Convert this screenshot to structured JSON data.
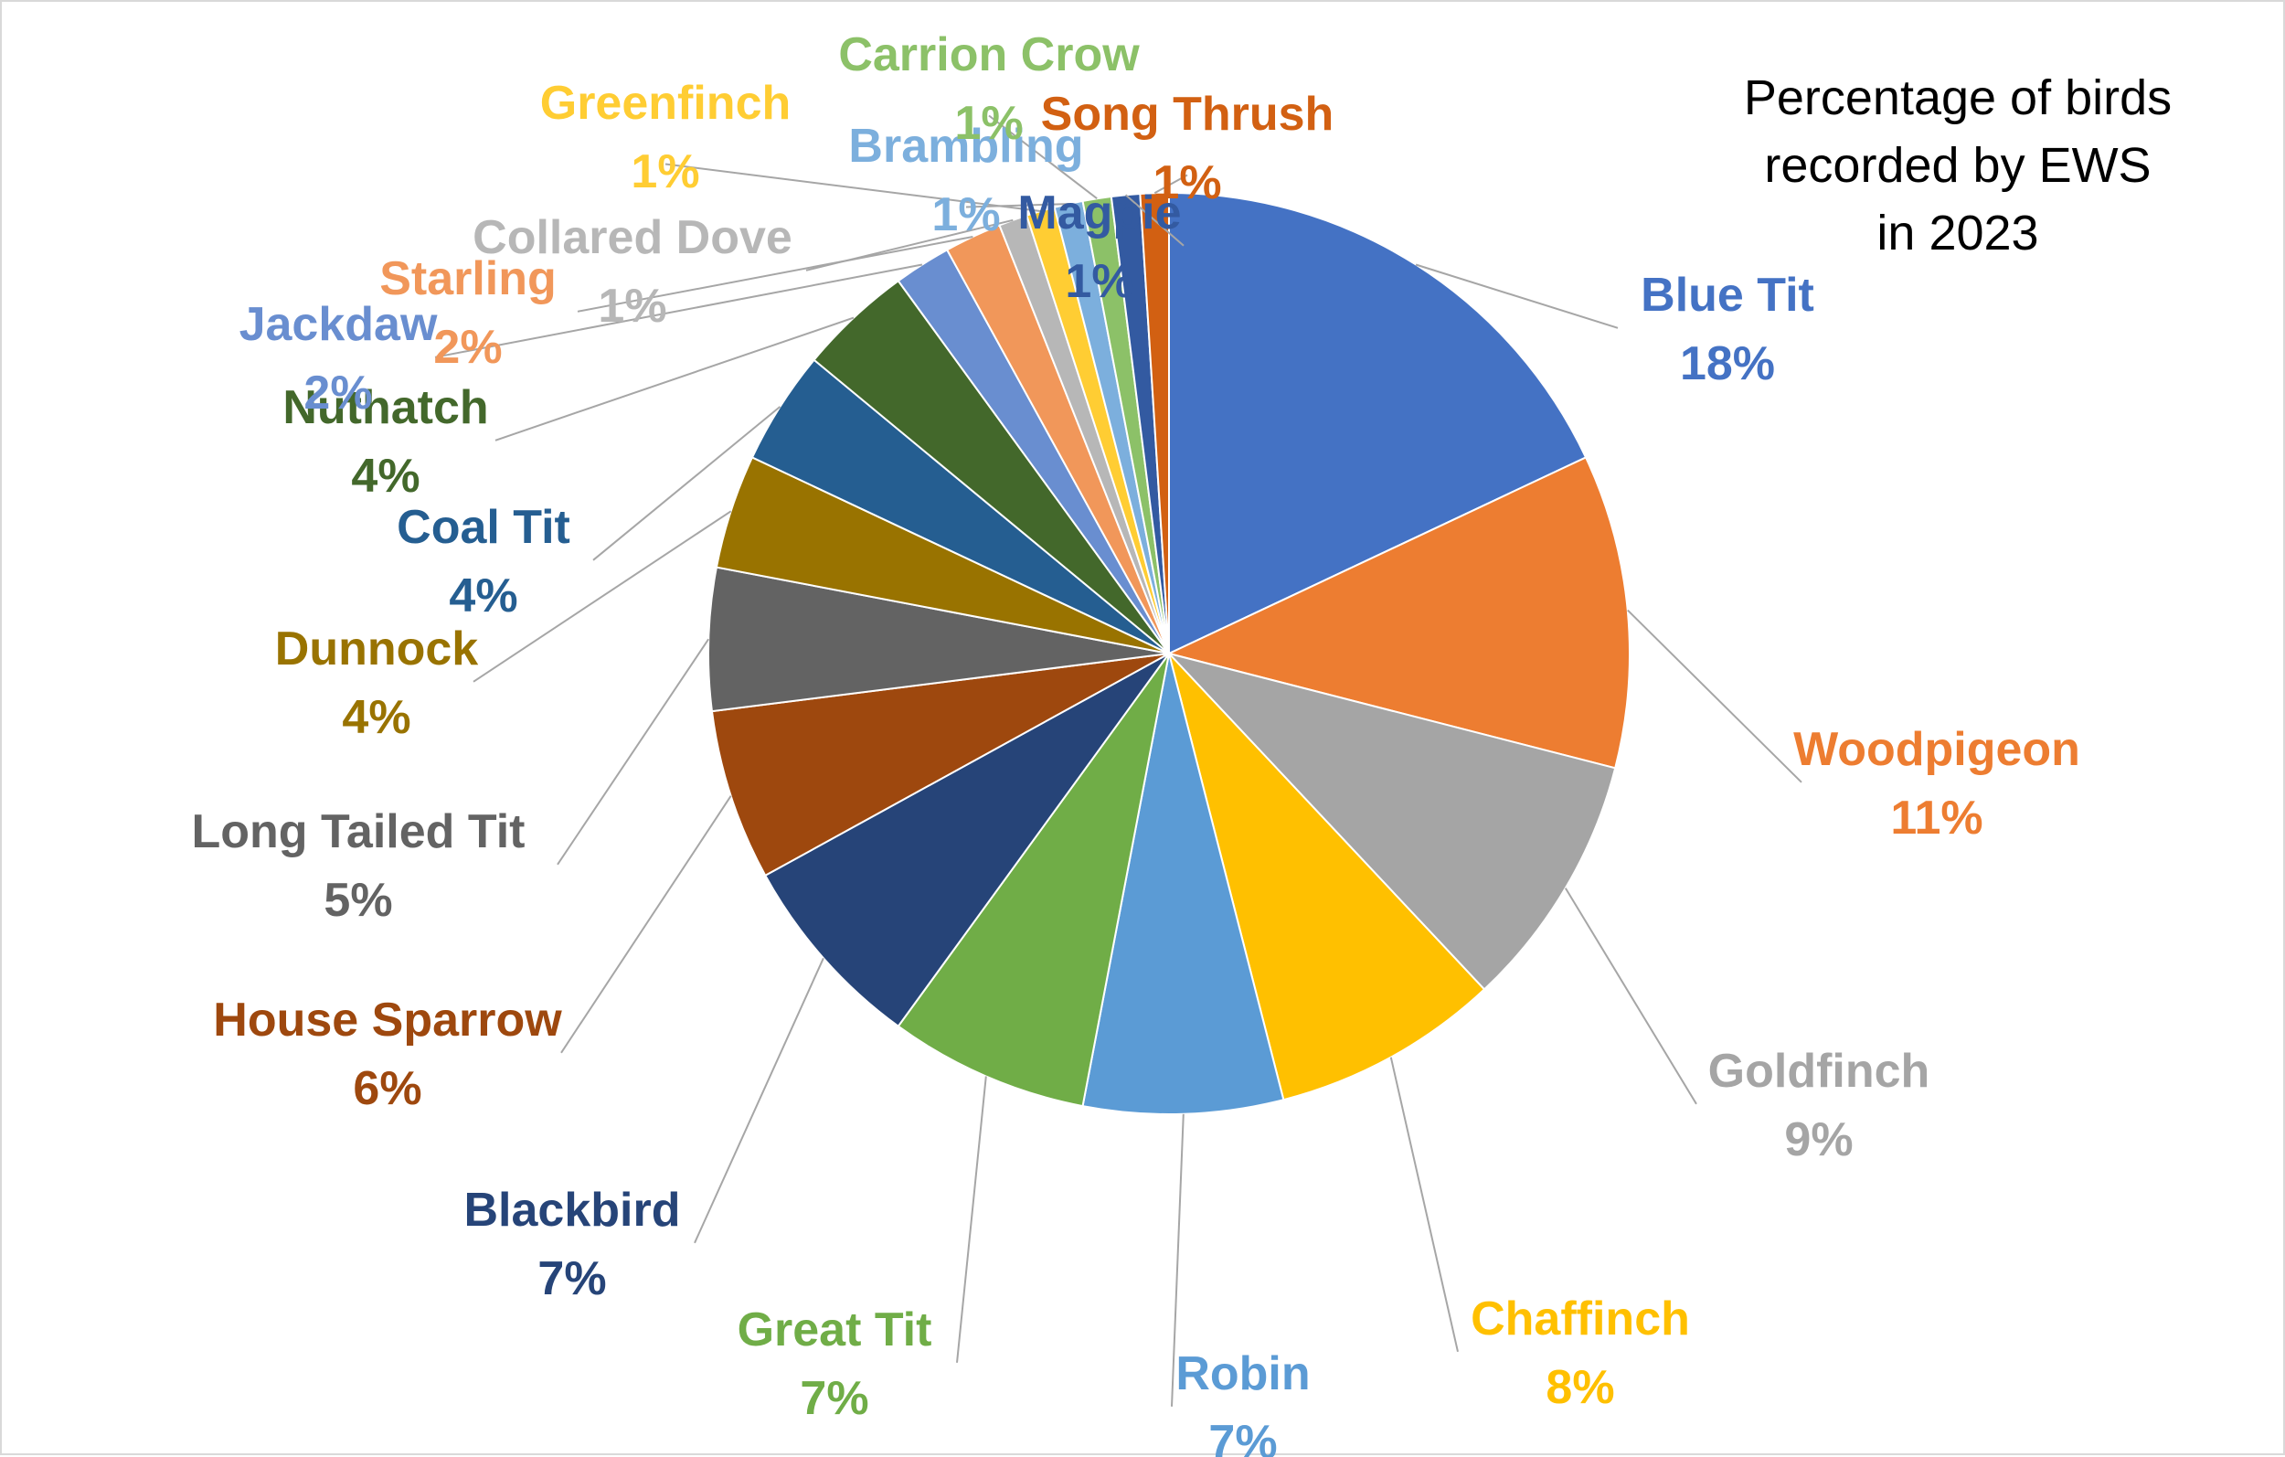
{
  "chart_data": {
    "type": "pie",
    "title_lines": [
      "Percentage of birds",
      "recorded by EWS",
      "in 2023"
    ],
    "value_unit": "%",
    "slices": [
      {
        "label": "Blue Tit",
        "value": 18,
        "color": "#4472C4"
      },
      {
        "label": "Woodpigeon",
        "value": 11,
        "color": "#ED7D31"
      },
      {
        "label": "Goldfinch",
        "value": 9,
        "color": "#A5A5A5"
      },
      {
        "label": "Chaffinch",
        "value": 8,
        "color": "#FFC000"
      },
      {
        "label": "Robin",
        "value": 7,
        "color": "#5B9BD5"
      },
      {
        "label": "Great Tit",
        "value": 7,
        "color": "#70AD47"
      },
      {
        "label": "Blackbird",
        "value": 7,
        "color": "#264478"
      },
      {
        "label": "House Sparrow",
        "value": 6,
        "color": "#9E480E"
      },
      {
        "label": "Long Tailed Tit",
        "value": 5,
        "color": "#636363"
      },
      {
        "label": "Dunnock",
        "value": 4,
        "color": "#997300"
      },
      {
        "label": "Coal Tit",
        "value": 4,
        "color": "#255E91"
      },
      {
        "label": "Nuthatch",
        "value": 4,
        "color": "#43682B"
      },
      {
        "label": "Jackdaw",
        "value": 2,
        "color": "#698ED0"
      },
      {
        "label": "Starling",
        "value": 2,
        "color": "#F1975A"
      },
      {
        "label": "Collared Dove",
        "value": 1,
        "color": "#B7B7B7"
      },
      {
        "label": "Greenfinch",
        "value": 1,
        "color": "#FFCD33"
      },
      {
        "label": "Brambling",
        "value": 1,
        "color": "#7CAFDD"
      },
      {
        "label": "Carrion Crow",
        "value": 1,
        "color": "#8CC168"
      },
      {
        "label": "Magpie",
        "value": 1,
        "color": "#335AA1"
      },
      {
        "label": "Song Thrush",
        "value": 1,
        "color": "#D26012"
      }
    ],
    "leader_line_color": "#A6A6A6"
  }
}
